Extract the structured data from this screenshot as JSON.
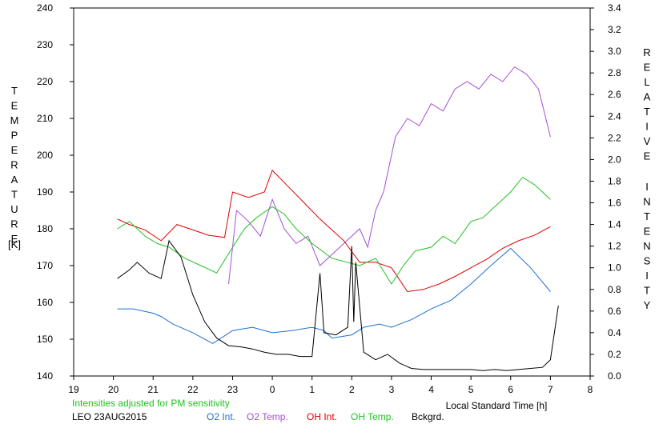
{
  "chart_data": {
    "type": "line",
    "xlabel": "Local Standard Time [h]",
    "ylabel_left": "TEMPERATURE",
    "ylabel_left_unit": "[K]",
    "ylabel_right": "RELATIVE INTENSITY",
    "note": "Intensities adjusted for PM sensitivity",
    "station": "LEO 23AUG2015",
    "xlim": [
      19,
      32
    ],
    "x_ticks": [
      19,
      20,
      21,
      22,
      23,
      24,
      25,
      26,
      27,
      28,
      29,
      30,
      31,
      32
    ],
    "x_tick_labels": [
      "19",
      "20",
      "21",
      "22",
      "23",
      "0",
      "1",
      "2",
      "3",
      "4",
      "5",
      "6",
      "7",
      "8"
    ],
    "ylim_left": [
      140,
      240
    ],
    "y_ticks_left": [
      "140",
      "150",
      "160",
      "170",
      "180",
      "190",
      "200",
      "210",
      "220",
      "230",
      "240"
    ],
    "ylim_right": [
      0,
      3.4
    ],
    "y_ticks_right": [
      "0.0",
      "0.2",
      "0.4",
      "0.6",
      "0.8",
      "1.0",
      "1.2",
      "1.4",
      "1.6",
      "1.8",
      "2.0",
      "2.2",
      "2.4",
      "2.6",
      "2.8",
      "3.0",
      "3.2",
      "3.4"
    ],
    "grid": false,
    "legend": [
      {
        "name": "O2 Int.",
        "color": "#1f6fd0"
      },
      {
        "name": "O2 Temp.",
        "color": "#a64fd6"
      },
      {
        "name": "OH Int.",
        "color": "#e00000"
      },
      {
        "name": "OH Temp.",
        "color": "#22c222"
      },
      {
        "name": "Bckgrd.",
        "color": "#000000"
      }
    ],
    "series": [
      {
        "name": "O2 Int.",
        "axis": "right",
        "color": "#1f6fd0",
        "x": [
          20.1,
          20.5,
          21.0,
          21.2,
          21.5,
          22.0,
          22.5,
          23.0,
          23.5,
          24.0,
          24.5,
          25.0,
          25.3,
          25.5,
          26.0,
          26.3,
          26.7,
          27.0,
          27.5,
          28.0,
          28.5,
          29.0,
          29.5,
          30.0,
          30.5,
          31.0
        ],
        "y": [
          0.62,
          0.62,
          0.58,
          0.55,
          0.48,
          0.4,
          0.3,
          0.42,
          0.45,
          0.4,
          0.42,
          0.45,
          0.42,
          0.35,
          0.38,
          0.45,
          0.48,
          0.45,
          0.52,
          0.62,
          0.7,
          0.85,
          1.02,
          1.18,
          1.0,
          0.78
        ]
      },
      {
        "name": "O2 Temp.",
        "axis": "left",
        "color": "#a64fd6",
        "x": [
          22.9,
          23.1,
          23.4,
          23.7,
          24.0,
          24.3,
          24.6,
          24.9,
          25.2,
          26.2,
          26.4,
          26.6,
          26.8,
          27.1,
          27.4,
          27.7,
          28.0,
          28.3,
          28.6,
          28.9,
          29.2,
          29.5,
          29.8,
          30.1,
          30.4,
          30.7,
          31.0
        ],
        "y": [
          165,
          185,
          182,
          178,
          188,
          180,
          176,
          178,
          170,
          180,
          175,
          185,
          190,
          205,
          210,
          208,
          214,
          212,
          218,
          220,
          218,
          222,
          220,
          224,
          222,
          218,
          205
        ]
      },
      {
        "name": "OH Int.",
        "axis": "right",
        "color": "#e00000",
        "x": [
          20.1,
          20.4,
          20.8,
          21.2,
          21.6,
          22.0,
          22.4,
          22.8,
          23.0,
          23.4,
          23.8,
          24.0,
          24.4,
          24.8,
          25.2,
          25.5,
          25.8,
          26.2,
          26.6,
          27.0,
          27.4,
          27.8,
          28.2,
          28.6,
          29.0,
          29.4,
          29.8,
          30.2,
          30.6,
          31.0
        ],
        "y": [
          1.45,
          1.4,
          1.35,
          1.25,
          1.4,
          1.35,
          1.3,
          1.28,
          1.7,
          1.65,
          1.7,
          1.9,
          1.75,
          1.6,
          1.45,
          1.35,
          1.25,
          1.05,
          1.05,
          1.0,
          0.78,
          0.8,
          0.85,
          0.92,
          1.0,
          1.08,
          1.18,
          1.25,
          1.3,
          1.38
        ]
      },
      {
        "name": "OH Temp.",
        "axis": "left",
        "color": "#22c222",
        "x": [
          20.1,
          20.4,
          20.8,
          21.1,
          21.4,
          21.8,
          22.2,
          22.6,
          23.0,
          23.3,
          23.6,
          24.0,
          24.3,
          24.6,
          25.0,
          25.5,
          26.2,
          26.6,
          27.0,
          27.3,
          27.6,
          28.0,
          28.3,
          28.6,
          29.0,
          29.3,
          29.6,
          30.0,
          30.3,
          30.6,
          31.0
        ],
        "y": [
          180,
          182,
          178,
          176,
          175,
          172,
          170,
          168,
          175,
          180,
          183,
          186,
          184,
          180,
          176,
          172,
          170,
          172,
          165,
          170,
          174,
          175,
          178,
          176,
          182,
          183,
          186,
          190,
          194,
          192,
          188
        ]
      },
      {
        "name": "Bckgrd.",
        "axis": "right",
        "color": "#000000",
        "x": [
          20.1,
          20.4,
          20.6,
          20.9,
          21.2,
          21.4,
          21.7,
          22.0,
          22.3,
          22.6,
          22.9,
          23.2,
          23.5,
          23.8,
          24.1,
          24.4,
          24.7,
          25.0,
          25.2,
          25.3,
          25.6,
          25.9,
          26.0,
          26.05,
          26.1,
          26.3,
          26.6,
          26.9,
          27.2,
          27.5,
          27.8,
          28.1,
          28.4,
          28.7,
          29.0,
          29.3,
          29.6,
          29.9,
          30.2,
          30.5,
          30.8,
          31.0,
          31.2
        ],
        "y": [
          0.9,
          0.98,
          1.05,
          0.95,
          0.9,
          1.25,
          1.1,
          0.75,
          0.5,
          0.35,
          0.28,
          0.27,
          0.25,
          0.22,
          0.2,
          0.2,
          0.18,
          0.18,
          0.95,
          0.4,
          0.38,
          0.45,
          1.2,
          0.5,
          1.05,
          0.22,
          0.15,
          0.2,
          0.12,
          0.07,
          0.06,
          0.06,
          0.06,
          0.06,
          0.06,
          0.05,
          0.06,
          0.05,
          0.06,
          0.07,
          0.08,
          0.15,
          0.65
        ]
      }
    ]
  }
}
